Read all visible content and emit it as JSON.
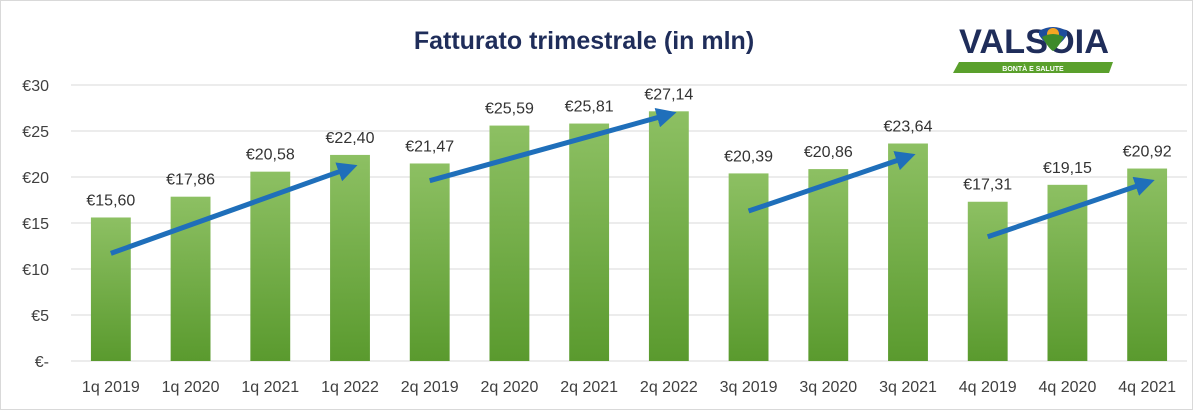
{
  "logo": {
    "name": "VALSOIA",
    "tagline": "BONTÀ E SALUTE",
    "colors": {
      "text": "#1f2d5a",
      "band": "#5aa02c",
      "sun": "#f5a623",
      "leaf": "#3d8a2a",
      "shield": "#1f4e9c"
    }
  },
  "colors": {
    "bar_top": "#8dc063",
    "bar_bottom": "#5a9a2e",
    "arrow": "#1f6fba",
    "gridline": "#d9d9d9",
    "title": "#1f2d5a"
  },
  "chart_data": {
    "type": "bar",
    "title": "Fatturato trimestrale (in mln)",
    "categories": [
      "1q 2019",
      "1q 2020",
      "1q 2021",
      "1q 2022",
      "2q 2019",
      "2q 2020",
      "2q 2021",
      "2q 2022",
      "3q 2019",
      "3q 2020",
      "3q 2021",
      "4q 2019",
      "4q 2020",
      "4q 2021"
    ],
    "values": [
      15.6,
      17.86,
      20.58,
      22.4,
      21.47,
      25.59,
      25.81,
      27.14,
      20.39,
      20.86,
      23.64,
      17.31,
      19.15,
      20.92
    ],
    "data_labels": [
      "€15,60",
      "€17,86",
      "€20,58",
      "€22,40",
      "€21,47",
      "€25,59",
      "€25,81",
      "€27,14",
      "€20,39",
      "€20,86",
      "€23,64",
      "€17,31",
      "€19,15",
      "€20,92"
    ],
    "y_ticks": [
      0,
      5,
      10,
      15,
      20,
      25,
      30
    ],
    "y_tick_labels": [
      "€-",
      "€5",
      "€10",
      "€15",
      "€20",
      "€25",
      "€30"
    ],
    "ylim": [
      0,
      30
    ],
    "xlabel": "",
    "ylabel": "",
    "grid": true,
    "legend": "none",
    "trend_arrows": [
      {
        "from": {
          "category": "1q 2019",
          "value": 11.7
        },
        "to": {
          "category": "1q 2022",
          "value": 21.0
        }
      },
      {
        "from": {
          "category": "2q 2019",
          "value": 19.6
        },
        "to": {
          "category": "2q 2022",
          "value": 26.8
        }
      },
      {
        "from": {
          "category": "3q 2019",
          "value": 16.3
        },
        "to": {
          "category": "3q 2021",
          "value": 22.2
        }
      },
      {
        "from": {
          "category": "4q 2019",
          "value": 13.5
        },
        "to": {
          "category": "4q 2021",
          "value": 19.4
        }
      }
    ]
  }
}
